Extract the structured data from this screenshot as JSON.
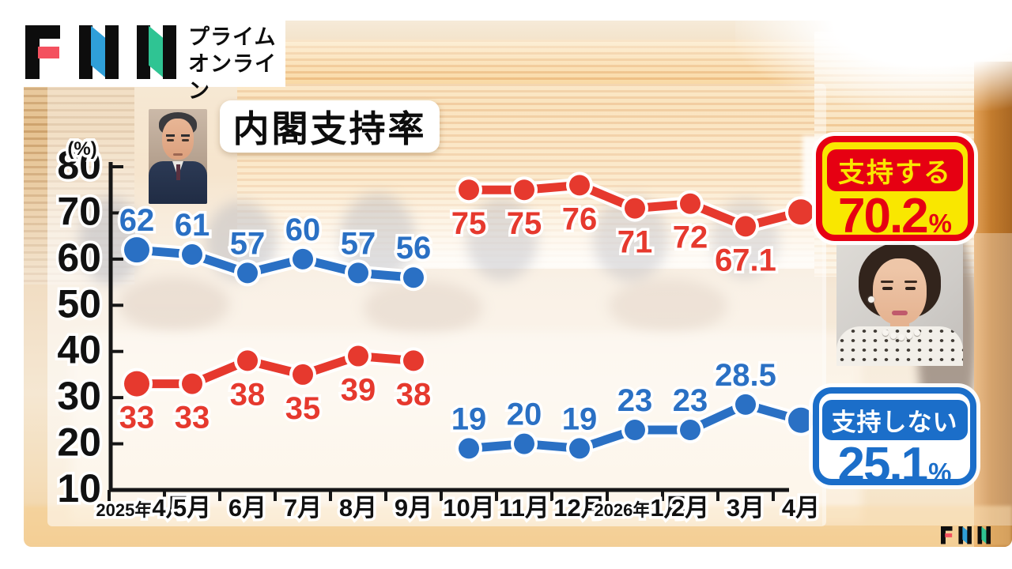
{
  "logo": {
    "brand": "FNN",
    "sub1": "プライム",
    "sub2": "オンライン",
    "small_brand": "FNN"
  },
  "title": {
    "text": "内閣支持率"
  },
  "badges": {
    "approve": {
      "label": "支持する",
      "value": "70.2",
      "unit": "%"
    },
    "disapprove": {
      "label": "支持しない",
      "value": "25.1",
      "unit": "%"
    }
  },
  "colors": {
    "line_red": "#e6392e",
    "line_blue": "#2a70c4",
    "badge_red": "#e60012",
    "badge_yellow": "#f9e700",
    "badge_blue": "#1b6ec9",
    "logo_red": "#f4515f",
    "logo_blue": "#2f9fd9",
    "logo_green": "#2fc493"
  },
  "chart_data": {
    "type": "line",
    "title": "内閣支持率",
    "ylabel": "(%)",
    "ylim": [
      10,
      80
    ],
    "yticks": [
      80,
      70,
      60,
      50,
      40,
      30,
      20,
      10
    ],
    "grid": false,
    "legend_position": "right-badges",
    "categories": [
      "2025年4月",
      "5月",
      "6月",
      "7月",
      "8月",
      "9月",
      "10月",
      "11月",
      "12月",
      "2026年1月",
      "2月",
      "3月",
      "4月"
    ],
    "series": [
      {
        "name": "approve-2025",
        "color": "blue",
        "start": 0,
        "values": [
          62,
          61,
          57,
          60,
          57,
          56
        ],
        "point_labels": [
          "62",
          "61",
          "57",
          "60",
          "57",
          "56"
        ],
        "label_position": "above"
      },
      {
        "name": "disapprove-2025",
        "color": "red",
        "start": 0,
        "values": [
          33,
          33,
          38,
          35,
          39,
          38
        ],
        "point_labels": [
          "33",
          "33",
          "38",
          "35",
          "39",
          "38"
        ],
        "label_position": "below"
      },
      {
        "name": "approve-2026",
        "color": "red",
        "start": 6,
        "values": [
          75,
          75,
          76,
          71,
          72,
          67.1,
          70.2
        ],
        "point_labels": [
          "75",
          "75",
          "76",
          "71",
          "72",
          "67.1",
          ""
        ],
        "label_position": "below"
      },
      {
        "name": "disapprove-2026",
        "color": "blue",
        "start": 6,
        "values": [
          19,
          20,
          19,
          23,
          23,
          28.5,
          25.1
        ],
        "point_labels": [
          "19",
          "20",
          "19",
          "23",
          "23",
          "28.5",
          ""
        ],
        "label_position": "above"
      }
    ]
  }
}
